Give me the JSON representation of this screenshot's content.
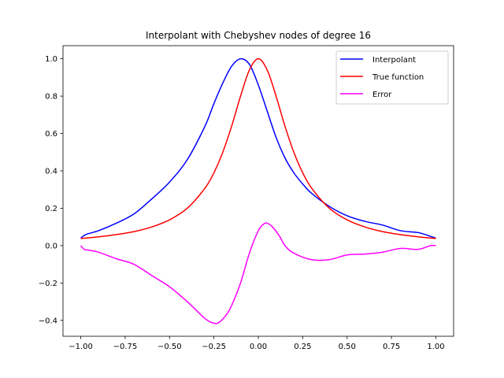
{
  "chart_data": {
    "type": "line",
    "title": "Interpolant with Chebyshev nodes of degree 16",
    "xlabel": "",
    "ylabel": "",
    "xlim": [
      -1.1,
      1.1
    ],
    "ylim": [
      -0.485,
      1.07
    ],
    "xticks": [
      -1.0,
      -0.75,
      -0.5,
      -0.25,
      0.0,
      0.25,
      0.5,
      0.75,
      1.0
    ],
    "xtick_labels": [
      "−1.00",
      "−0.75",
      "−0.50",
      "−0.25",
      "0.00",
      "0.25",
      "0.50",
      "0.75",
      "1.00"
    ],
    "yticks": [
      -0.4,
      -0.2,
      0.0,
      0.2,
      0.4,
      0.6,
      0.8,
      1.0
    ],
    "ytick_labels": [
      "−0.4",
      "−0.2",
      "0.0",
      "0.2",
      "0.4",
      "0.6",
      "0.8",
      "1.0"
    ],
    "grid": false,
    "legend_position": "top-right",
    "series": [
      {
        "name": "Interpolant",
        "color": "#0000ff",
        "x": [
          -1.0,
          -0.97,
          -0.9,
          -0.8,
          -0.7,
          -0.6,
          -0.5,
          -0.4,
          -0.3,
          -0.25,
          -0.2,
          -0.15,
          -0.1,
          -0.05,
          0.0,
          0.05,
          0.1,
          0.15,
          0.2,
          0.25,
          0.3,
          0.4,
          0.5,
          0.6,
          0.7,
          0.8,
          0.9,
          0.97,
          1.0
        ],
        "y": [
          0.04,
          0.06,
          0.08,
          0.12,
          0.17,
          0.25,
          0.34,
          0.46,
          0.64,
          0.76,
          0.87,
          0.96,
          1.0,
          0.97,
          0.86,
          0.72,
          0.58,
          0.47,
          0.39,
          0.33,
          0.28,
          0.21,
          0.16,
          0.13,
          0.11,
          0.08,
          0.07,
          0.05,
          0.04
        ]
      },
      {
        "name": "True function",
        "color": "#ff0000",
        "x": [
          -1.0,
          -0.9,
          -0.8,
          -0.7,
          -0.6,
          -0.5,
          -0.4,
          -0.3,
          -0.25,
          -0.2,
          -0.15,
          -0.1,
          -0.05,
          0.0,
          0.05,
          0.1,
          0.15,
          0.2,
          0.25,
          0.3,
          0.4,
          0.5,
          0.6,
          0.7,
          0.8,
          0.9,
          1.0
        ],
        "y": [
          0.038,
          0.047,
          0.059,
          0.075,
          0.1,
          0.138,
          0.2,
          0.308,
          0.39,
          0.5,
          0.64,
          0.8,
          0.94,
          1.0,
          0.94,
          0.8,
          0.64,
          0.5,
          0.39,
          0.308,
          0.2,
          0.138,
          0.1,
          0.075,
          0.059,
          0.047,
          0.038
        ]
      },
      {
        "name": "Error",
        "color": "#ff00ff",
        "x": [
          -1.0,
          -0.98,
          -0.95,
          -0.9,
          -0.8,
          -0.7,
          -0.6,
          -0.5,
          -0.4,
          -0.3,
          -0.25,
          -0.22,
          -0.18,
          -0.15,
          -0.1,
          -0.05,
          0.0,
          0.03,
          0.05,
          0.08,
          0.12,
          0.15,
          0.2,
          0.3,
          0.4,
          0.5,
          0.6,
          0.7,
          0.8,
          0.9,
          0.97,
          1.0
        ],
        "y": [
          0.0,
          -0.02,
          -0.025,
          -0.035,
          -0.07,
          -0.1,
          -0.16,
          -0.22,
          -0.3,
          -0.39,
          -0.415,
          -0.41,
          -0.37,
          -0.32,
          -0.2,
          -0.04,
          0.08,
          0.115,
          0.12,
          0.1,
          0.05,
          0.0,
          -0.04,
          -0.075,
          -0.075,
          -0.05,
          -0.045,
          -0.035,
          -0.015,
          -0.02,
          0.0,
          0.0
        ]
      }
    ]
  }
}
